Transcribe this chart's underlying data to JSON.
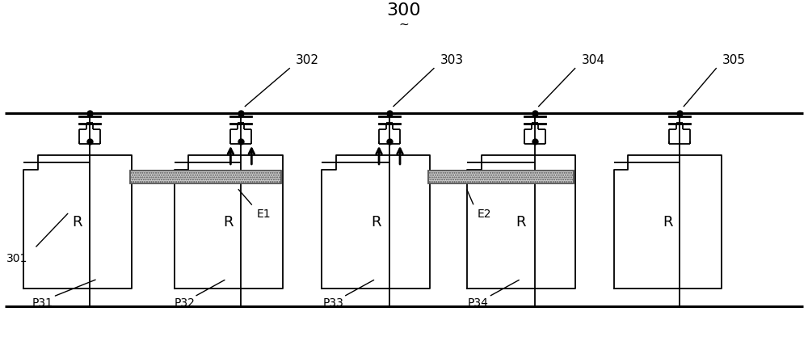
{
  "title": "300",
  "bg_color": "#ffffff",
  "line_color": "#000000",
  "labels": {
    "301": "301",
    "302": "302",
    "303": "303",
    "304": "304",
    "305": "305",
    "P31": "P31",
    "P32": "P32",
    "P33": "P33",
    "P34": "P34",
    "E1": "E1",
    "E2": "E2",
    "R": "R"
  },
  "fig_w": 10.0,
  "fig_h": 4.17,
  "dpi": 100
}
